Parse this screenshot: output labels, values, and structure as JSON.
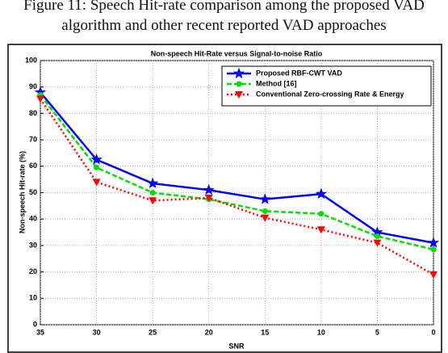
{
  "caption": [
    "Figure 11: Speech Hit-rate comparison among the proposed VAD",
    "algorithm and other recent reported VAD approaches"
  ],
  "chart_data": {
    "type": "line",
    "title": "Non-speech Hit-Rate versus Signal-to-noise Ratio",
    "x_label": "SNR",
    "y_label": "Non-speech Hit-rate (%)",
    "categories": [
      "35",
      "30",
      "25",
      "20",
      "15",
      "10",
      "5",
      "0"
    ],
    "series": [
      {
        "name": "Proposed RBF-CWT VAD",
        "color": "#0000ff",
        "values": [
          88,
          62.5,
          53.5,
          51,
          47.5,
          49.5,
          35,
          31
        ]
      },
      {
        "name": "Method [16]",
        "color": "#00dd00",
        "values": [
          87,
          59.5,
          50,
          47.5,
          43,
          42,
          33.5,
          28.5
        ]
      },
      {
        "name": "Conventional Zero-crossing Rate & Energy",
        "color": "#ff0000",
        "values": [
          85.5,
          54,
          47,
          48,
          40.5,
          36,
          31,
          19
        ]
      }
    ],
    "ylim": [
      0,
      100
    ],
    "yticks": [
      0,
      10,
      20,
      30,
      40,
      50,
      60,
      70,
      80,
      90,
      100
    ],
    "grid": true,
    "legend": "top-right"
  }
}
